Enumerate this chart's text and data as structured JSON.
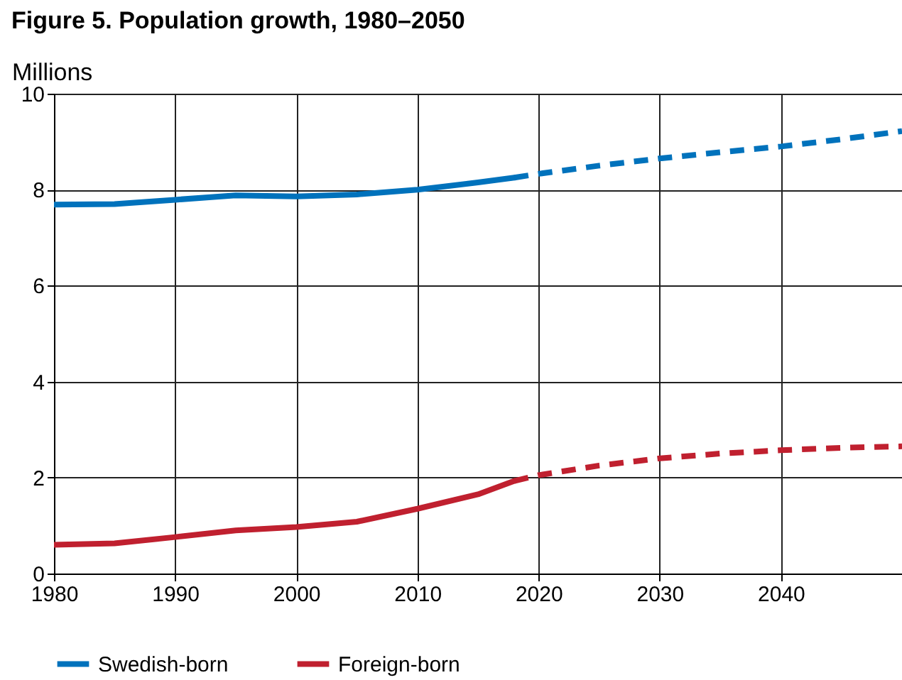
{
  "chart_data": {
    "type": "line",
    "title": "Figure 5. Population growth, 1980–2050",
    "ylabel": "Millions",
    "xlim": [
      1980,
      2050
    ],
    "xticks": [
      1980,
      1990,
      2000,
      2010,
      2020,
      2030,
      2040
    ],
    "ylim": [
      0,
      10
    ],
    "yticks": [
      0,
      2,
      4,
      6,
      8,
      10
    ],
    "grid": true,
    "legend": "bottom",
    "marker": "none",
    "series": [
      {
        "name": "Swedish-born",
        "color": "#0072bc",
        "line_style": "solid",
        "x": [
          1980,
          1985,
          1990,
          1995,
          2000,
          2005,
          2010,
          2015,
          2018
        ],
        "values": [
          7.69,
          7.7,
          7.79,
          7.88,
          7.86,
          7.9,
          8.0,
          8.15,
          8.25
        ]
      },
      {
        "color": "#0072bc",
        "line_style": "dashed",
        "x": [
          2018,
          2020,
          2025,
          2030,
          2035,
          2040,
          2045,
          2050
        ],
        "values": [
          8.25,
          8.33,
          8.5,
          8.65,
          8.78,
          8.9,
          9.05,
          9.22
        ]
      },
      {
        "name": "Foreign-born",
        "color": "#c0202f",
        "line_style": "solid",
        "x": [
          1980,
          1985,
          1990,
          1995,
          2000,
          2005,
          2010,
          2015,
          2018
        ],
        "values": [
          0.6,
          0.63,
          0.76,
          0.9,
          0.97,
          1.08,
          1.35,
          1.65,
          1.93
        ]
      },
      {
        "color": "#c0202f",
        "line_style": "dashed",
        "x": [
          2018,
          2020,
          2025,
          2030,
          2035,
          2040,
          2045,
          2050
        ],
        "values": [
          1.93,
          2.05,
          2.25,
          2.4,
          2.5,
          2.57,
          2.62,
          2.65
        ]
      }
    ]
  }
}
